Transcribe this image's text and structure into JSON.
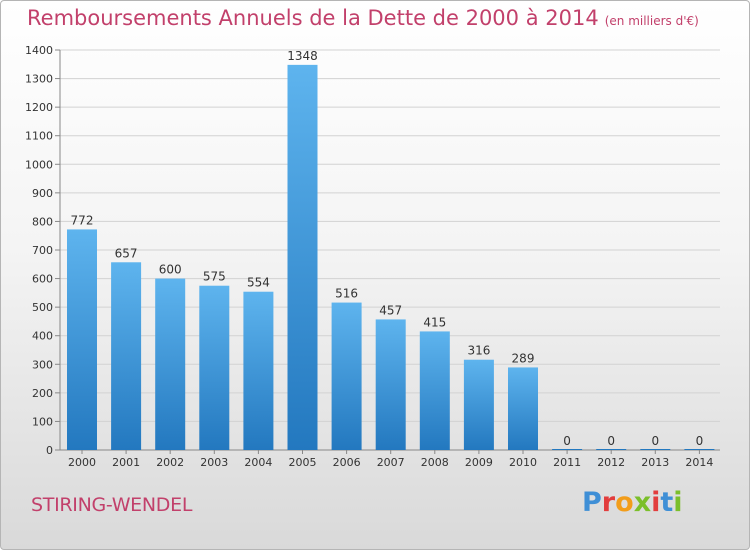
{
  "title": "Remboursements Annuels de la Dette de 2000 à 2014",
  "unit": "(en milliers d'€)",
  "commune": "STIRING-WENDEL",
  "brand": "Proxiti",
  "colors": {
    "title": "#c2406b",
    "bar_light": "#5eb4ee",
    "bar_dark": "#2378bf"
  },
  "chart_data": {
    "type": "bar",
    "categories": [
      "2000",
      "2001",
      "2002",
      "2003",
      "2004",
      "2005",
      "2006",
      "2007",
      "2008",
      "2009",
      "2010",
      "2011",
      "2012",
      "2013",
      "2014"
    ],
    "values": [
      772,
      657,
      600,
      575,
      554,
      1348,
      516,
      457,
      415,
      316,
      289,
      0,
      0,
      0,
      0
    ],
    "data_labels": [
      "772",
      "657",
      "600",
      "575",
      "554",
      "1348",
      "516",
      "457",
      "415",
      "316",
      "289",
      "0",
      "0",
      "0",
      "0"
    ],
    "yticks": [
      0,
      100,
      200,
      300,
      400,
      500,
      600,
      700,
      800,
      900,
      1000,
      1100,
      1200,
      1300,
      1400
    ],
    "ylim": [
      0,
      1400
    ],
    "grid": true
  }
}
